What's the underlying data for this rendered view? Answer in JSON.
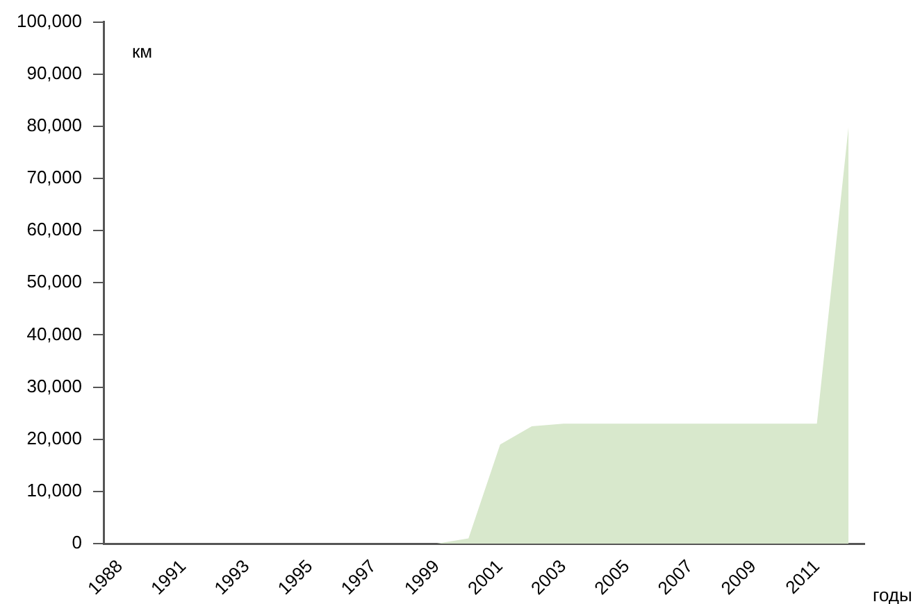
{
  "chart_data": {
    "type": "area",
    "xlabel": "годы",
    "ylabel": "км",
    "categories": [
      "1988",
      null,
      "1991",
      null,
      "1993",
      null,
      "1995",
      null,
      "1997",
      null,
      "1999",
      null,
      "2001",
      null,
      "2003",
      null,
      "2005",
      null,
      "2007",
      null,
      "2009",
      null,
      "2011",
      null
    ],
    "series": [
      {
        "color": "#d8e8cc",
        "values": [
          0,
          0,
          0,
          0,
          0,
          0,
          0,
          0,
          0,
          0,
          0,
          1000,
          19000,
          22500,
          23000,
          23000,
          23000,
          23000,
          23000,
          23000,
          23000,
          23000,
          23000,
          80000
        ]
      }
    ],
    "ylim": [
      0,
      100000
    ],
    "yticks": [
      0,
      {
        "value": 10000,
        "label": "10,000"
      },
      {
        "value": 20000,
        "label": "20,000"
      },
      {
        "value": 30000,
        "label": "30,000"
      },
      {
        "value": 40000,
        "label": "40,000"
      },
      {
        "value": 50000,
        "label": "50,000"
      },
      {
        "value": 60000,
        "label": "60,000"
      },
      {
        "value": 70000,
        "label": "70,000"
      },
      {
        "value": 80000,
        "label": "80,000"
      },
      {
        "value": 90000,
        "label": "90,000"
      },
      {
        "value": 100000,
        "label": "100,000"
      }
    ],
    "grid": false,
    "legend": false
  }
}
